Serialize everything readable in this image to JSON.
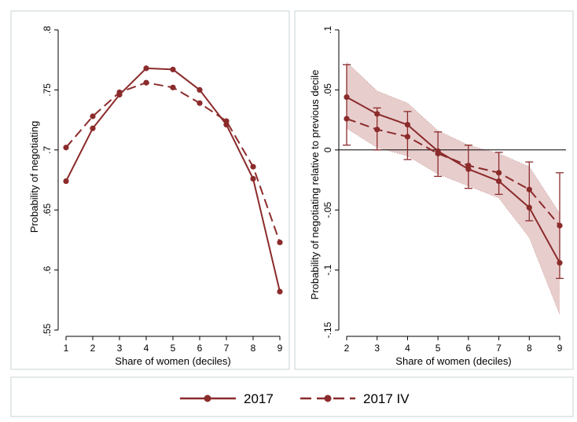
{
  "colors": {
    "series": "#8b2b2b",
    "band": "#e8cdcd",
    "band_edge": "#c89a9a",
    "frame": "#c9d3d6",
    "zero_line": "#000000"
  },
  "chart_data": [
    {
      "type": "line",
      "xlabel": "Share of women (deciles)",
      "ylabel": "Probability of negotiating",
      "x": [
        1,
        2,
        3,
        4,
        5,
        6,
        7,
        8,
        9
      ],
      "xlim": [
        1,
        9
      ],
      "ylim": [
        0.55,
        0.8
      ],
      "xticks": [
        "1",
        "2",
        "3",
        "4",
        "5",
        "6",
        "7",
        "8",
        "9"
      ],
      "yticks": [
        {
          "v": 0.55,
          "label": ".55"
        },
        {
          "v": 0.6,
          "label": ".6"
        },
        {
          "v": 0.65,
          "label": ".65"
        },
        {
          "v": 0.7,
          "label": ".7"
        },
        {
          "v": 0.75,
          "label": ".75"
        },
        {
          "v": 0.8,
          "label": ".8"
        }
      ],
      "series": [
        {
          "name": "2017",
          "dash": false,
          "values": [
            0.674,
            0.718,
            0.746,
            0.768,
            0.767,
            0.75,
            0.721,
            0.676,
            0.582
          ]
        },
        {
          "name": "2017 IV",
          "dash": true,
          "values": [
            0.702,
            0.728,
            0.748,
            0.756,
            0.752,
            0.739,
            0.724,
            0.686,
            0.623
          ]
        }
      ]
    },
    {
      "type": "line",
      "xlabel": "Share of women (deciles)",
      "ylabel": "Probability of negotiating relative to previous decile",
      "x": [
        2,
        3,
        4,
        5,
        6,
        7,
        8,
        9
      ],
      "xlim": [
        2,
        9
      ],
      "ylim": [
        -0.15,
        0.1
      ],
      "xticks": [
        "2",
        "3",
        "4",
        "5",
        "6",
        "7",
        "8",
        "9"
      ],
      "yticks": [
        {
          "v": -0.15,
          "label": "-.15"
        },
        {
          "v": -0.1,
          "label": "-.1"
        },
        {
          "v": -0.05,
          "label": "-.05"
        },
        {
          "v": 0,
          "label": "0"
        },
        {
          "v": 0.05,
          "label": ".05"
        },
        {
          "v": 0.1,
          "label": ".1"
        }
      ],
      "zero_line": true,
      "series": [
        {
          "name": "2017",
          "dash": false,
          "values": [
            0.044,
            0.03,
            0.021,
            -0.001,
            -0.016,
            -0.026,
            -0.048,
            -0.094
          ],
          "ci_low": [
            0.004,
            0.0,
            -0.008,
            -0.022,
            -0.032,
            -0.037,
            -0.059,
            -0.107
          ],
          "ci_high": [
            0.071,
            0.035,
            0.032,
            0.015,
            0.004,
            -0.002,
            -0.01,
            -0.019
          ]
        },
        {
          "name": "2017 IV",
          "dash": true,
          "values": [
            0.026,
            0.017,
            0.011,
            -0.003,
            -0.013,
            -0.019,
            -0.033,
            -0.063
          ]
        }
      ],
      "band": {
        "upper": [
          0.073,
          0.049,
          0.039,
          0.016,
          0.004,
          -0.003,
          -0.014,
          -0.053
        ],
        "lower": [
          0.018,
          0.002,
          -0.005,
          -0.02,
          -0.03,
          -0.04,
          -0.073,
          -0.137
        ]
      }
    }
  ],
  "legend": {
    "position": "bottom",
    "items": [
      "2017",
      "2017 IV"
    ]
  }
}
